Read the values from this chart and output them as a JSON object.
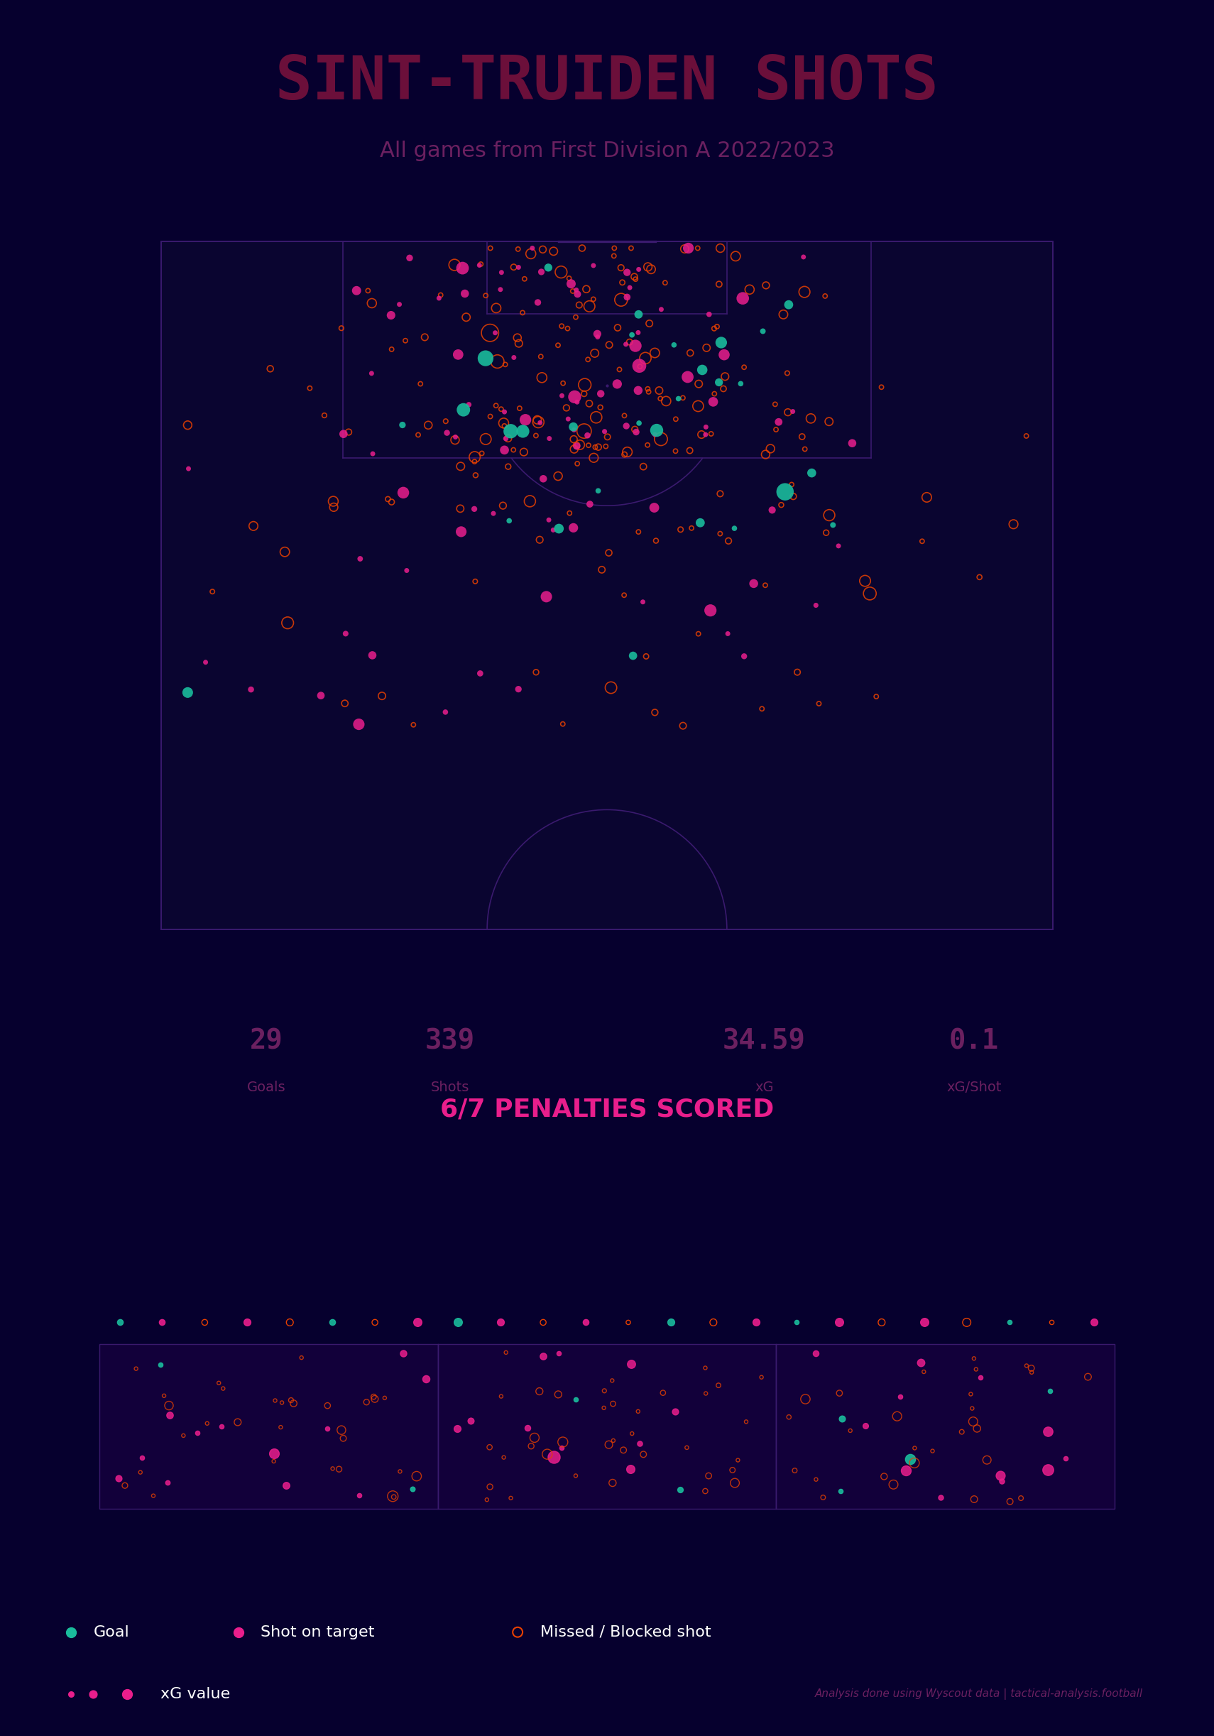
{
  "bg_color": "#06002e",
  "field_color": "#1a0a3a",
  "title": "SINT-TRUIDEN SHOTS",
  "subtitle": "All games from First Division A 2022/2023",
  "title_color": "#6b0f3a",
  "subtitle_color": "#6b2060",
  "stats_row": [
    "29",
    "339",
    "34.59",
    "0.1"
  ],
  "stats_labels": [
    "Goals",
    "Shots",
    "xG",
    "xG/Shot"
  ],
  "penalty_title": "6/7 PENALTIES SCORED",
  "goal_color": "#1abc9c",
  "shot_on_target_color": "#e91e8c",
  "missed_color_fill": "none",
  "missed_color_edge": "#e84000",
  "legend_labels": [
    "Goal",
    "Shot on target",
    "Missed / Blocked shot"
  ],
  "xg_legend_label": "xG value",
  "watermark": "Analysis done using Wyscout data | tactical-analysis.football"
}
